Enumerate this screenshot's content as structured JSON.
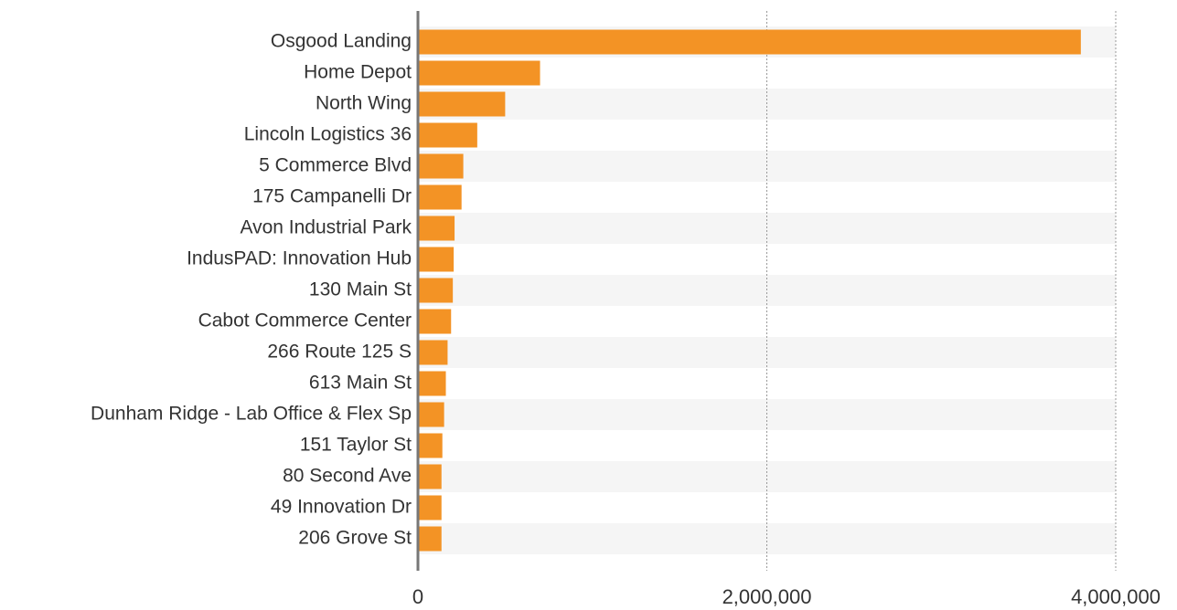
{
  "chart_data": {
    "type": "bar",
    "orientation": "horizontal",
    "categories": [
      "Osgood Landing",
      "Home Depot",
      "North Wing",
      "Lincoln Logistics 36",
      "5 Commerce Blvd",
      "175 Campanelli Dr",
      "Avon Industrial Park",
      "IndusPAD: Innovation Hub",
      "130 Main St",
      "Cabot Commerce Center",
      "266 Route 125 S",
      "613 Main St",
      "Dunham Ridge - Lab Office & Flex Sp",
      "151 Taylor St",
      "80 Second Ave",
      "49 Innovation Dr",
      "206 Grove St"
    ],
    "values": [
      3800000,
      700000,
      500000,
      340000,
      260000,
      250000,
      210000,
      205000,
      200000,
      190000,
      170000,
      160000,
      150000,
      140000,
      135000,
      135000,
      135000
    ],
    "color": "#f39325",
    "xlim": [
      0,
      4000000
    ],
    "xticks": [
      0,
      {
        "value": 2000000,
        "label": "2,000,000"
      },
      {
        "value": 4000000,
        "label": "4,000,000"
      }
    ],
    "grid": true
  }
}
